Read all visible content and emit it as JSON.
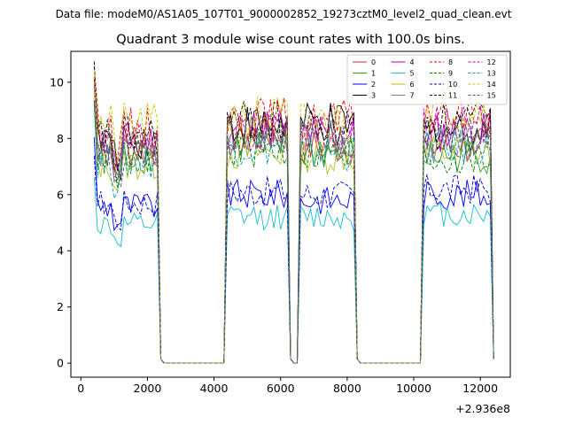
{
  "suptitle": "Data file: modeM0/AS1A05_107T01_9000002852_19273cztM0_level2_quad_clean.evt",
  "chart_data": {
    "type": "line",
    "title": "Quadrant 3 module wise count rates with 100.0s bins.",
    "xlabel": "",
    "ylabel": "",
    "x_offset_label": "+2.936e8",
    "xlim": [
      -300,
      12900
    ],
    "ylim": [
      -0.5,
      11.1
    ],
    "xticks": [
      0,
      2000,
      4000,
      6000,
      8000,
      10000,
      12000
    ],
    "yticks": [
      0,
      2,
      4,
      6,
      8,
      10
    ],
    "xtick_labels": [
      "0",
      "2000",
      "4000",
      "6000",
      "8000",
      "10000",
      "12000"
    ],
    "ytick_labels": [
      "0",
      "2",
      "4",
      "6",
      "8",
      "10"
    ],
    "legend_position": "top-right",
    "segments": [
      {
        "start": 400,
        "end": 2300
      },
      {
        "start": 4400,
        "end": 6200
      },
      {
        "start": 6600,
        "end": 8200
      },
      {
        "start": 10300,
        "end": 12300
      }
    ],
    "series": [
      {
        "name": "0",
        "color": "#d62728",
        "dash": false,
        "levels": [
          7.6,
          8.1,
          7.7,
          7.7
        ]
      },
      {
        "name": "1",
        "color": "#2ca02c",
        "dash": false,
        "levels": [
          7.4,
          7.7,
          7.5,
          7.4
        ]
      },
      {
        "name": "2",
        "color": "#0000ff",
        "dash": false,
        "levels": [
          5.6,
          6.0,
          5.8,
          6.0
        ]
      },
      {
        "name": "3",
        "color": "#000000",
        "dash": false,
        "levels": [
          8.0,
          8.5,
          8.5,
          8.3
        ]
      },
      {
        "name": "4",
        "color": "#b000b0",
        "dash": false,
        "levels": [
          7.9,
          8.4,
          8.2,
          8.2
        ]
      },
      {
        "name": "5",
        "color": "#17becf",
        "dash": false,
        "levels": [
          4.9,
          5.2,
          5.2,
          5.3
        ]
      },
      {
        "name": "6",
        "color": "#bcbd22",
        "dash": false,
        "levels": [
          7.1,
          7.5,
          7.4,
          7.5
        ]
      },
      {
        "name": "7",
        "color": "#7f7f7f",
        "dash": false,
        "levels": [
          7.6,
          8.0,
          7.9,
          7.8
        ]
      },
      {
        "name": "8",
        "color": "#ff0000",
        "dash": true,
        "levels": [
          8.4,
          8.7,
          8.6,
          8.9
        ]
      },
      {
        "name": "9",
        "color": "#008000",
        "dash": true,
        "levels": [
          7.3,
          7.6,
          7.5,
          7.3
        ]
      },
      {
        "name": "10",
        "color": "#0000cc",
        "dash": true,
        "levels": [
          5.7,
          6.1,
          6.0,
          6.2
        ]
      },
      {
        "name": "11",
        "color": "#000000",
        "dash": true,
        "levels": [
          8.1,
          8.6,
          8.4,
          8.6
        ]
      },
      {
        "name": "12",
        "color": "#c000c0",
        "dash": true,
        "levels": [
          7.8,
          8.3,
          8.1,
          8.5
        ]
      },
      {
        "name": "13",
        "color": "#00a0c0",
        "dash": true,
        "levels": [
          7.2,
          7.7,
          7.5,
          7.7
        ]
      },
      {
        "name": "14",
        "color": "#c8c800",
        "dash": true,
        "levels": [
          8.5,
          8.8,
          8.6,
          9.1
        ]
      },
      {
        "name": "15",
        "color": "#555555",
        "dash": true,
        "levels": [
          7.7,
          8.2,
          8.0,
          8.1
        ]
      }
    ]
  }
}
